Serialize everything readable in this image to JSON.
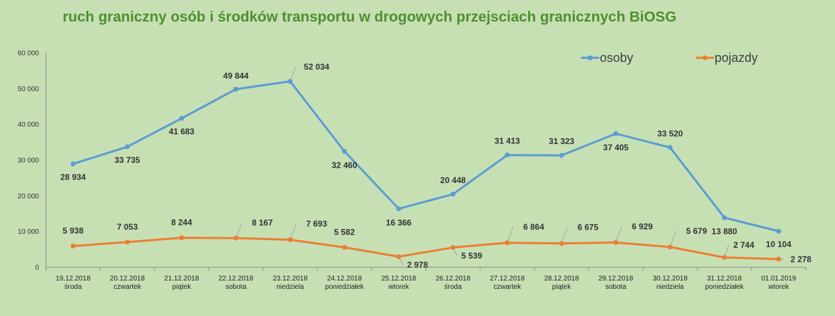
{
  "chart_data": {
    "type": "line",
    "title": "ruch graniczny osób i środków transportu w drogowych przejsciach granicznych BiOSG",
    "xlabel": "",
    "ylabel": "",
    "ylim": [
      0,
      60000
    ],
    "yticks": [
      "0",
      "10 000",
      "20 000",
      "30 000",
      "40 000",
      "50 000",
      "60 000"
    ],
    "grid": false,
    "legend_position": "top-right",
    "categories": [
      {
        "date": "19.12.2018",
        "day": "środa"
      },
      {
        "date": "20.12.2018",
        "day": "czwartek"
      },
      {
        "date": "21.12.2018",
        "day": "piątek"
      },
      {
        "date": "22.12.2018",
        "day": "sobota"
      },
      {
        "date": "23.12.2018",
        "day": "niedziela"
      },
      {
        "date": "24.12.2018",
        "day": "poniedziałek"
      },
      {
        "date": "25.12.2018",
        "day": "wtorek"
      },
      {
        "date": "26.12.2018",
        "day": "środa"
      },
      {
        "date": "27.12.2018",
        "day": "czwartek"
      },
      {
        "date": "28.12.2018",
        "day": "piątek"
      },
      {
        "date": "29.12.2018",
        "day": "sobota"
      },
      {
        "date": "30.12.2018",
        "day": "niedziela"
      },
      {
        "date": "31.12.2018",
        "day": "poniedziałek"
      },
      {
        "date": "01.01.2019",
        "day": "wtorek"
      }
    ],
    "series": [
      {
        "name": "osoby",
        "color": "#5b9bd5",
        "values": [
          28934,
          33735,
          41683,
          49844,
          52034,
          32460,
          16366,
          20448,
          31413,
          31323,
          37405,
          33520,
          13880,
          10104
        ],
        "labels": [
          "28 934",
          "33 735",
          "41 683",
          "49 844",
          "52 034",
          "32 460",
          "16 366",
          "20 448",
          "31 413",
          "31 323",
          "37 405",
          "33 520",
          "13 880",
          "10 104"
        ]
      },
      {
        "name": "pojazdy",
        "color": "#ed7d31",
        "values": [
          5938,
          7053,
          8244,
          8167,
          7693,
          5582,
          2978,
          5539,
          6864,
          6675,
          6929,
          5679,
          2744,
          2278
        ],
        "labels": [
          "5 938",
          "7 053",
          "8 244",
          "8 167",
          "7 693",
          "5 582",
          "2 978",
          "5 539",
          "6 864",
          "6 675",
          "6 929",
          "5 679",
          "2 744",
          "2 278"
        ]
      }
    ]
  }
}
